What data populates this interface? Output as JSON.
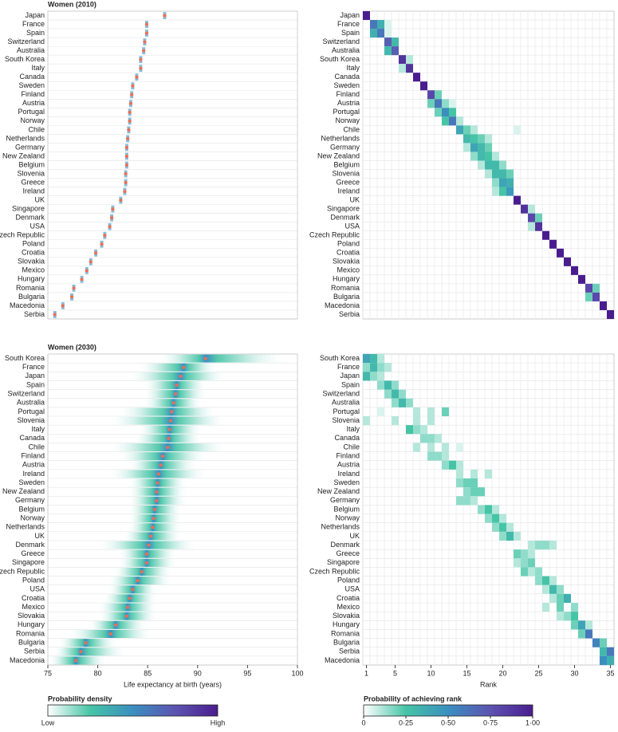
{
  "chart_data": [
    {
      "type": "dot",
      "title": "Women (2010)",
      "categories": [
        "Japan",
        "France",
        "Spain",
        "Switzerland",
        "Australia",
        "South Korea",
        "Italy",
        "Canada",
        "Sweden",
        "Finland",
        "Austria",
        "Portugal",
        "Norway",
        "Chile",
        "Netherlands",
        "Germany",
        "New Zealand",
        "Belgium",
        "Slovenia",
        "Greece",
        "Ireland",
        "UK",
        "Singapore",
        "Denmark",
        "USA",
        "Czech Republic",
        "Poland",
        "Croatia",
        "Slovakia",
        "Mexico",
        "Hungary",
        "Romania",
        "Bulgaria",
        "Macedonia",
        "Serbia"
      ],
      "values": [
        86.7,
        84.9,
        84.9,
        84.7,
        84.6,
        84.3,
        84.3,
        83.9,
        83.5,
        83.4,
        83.3,
        83.2,
        83.2,
        83.1,
        83.0,
        82.9,
        82.9,
        82.9,
        82.8,
        82.8,
        82.7,
        82.3,
        81.5,
        81.4,
        81.2,
        80.7,
        80.4,
        79.8,
        79.3,
        78.9,
        78.4,
        77.6,
        77.4,
        76.5,
        75.7
      ],
      "xlim": [
        75,
        100
      ],
      "color": "#f26b4f"
    },
    {
      "type": "heatmap",
      "categories": [
        "Japan",
        "France",
        "Spain",
        "Switzerland",
        "Australia",
        "South Korea",
        "Italy",
        "Canada",
        "Sweden",
        "Finland",
        "Austria",
        "Portugal",
        "Norway",
        "Chile",
        "Netherlands",
        "Germany",
        "New Zealand",
        "Belgium",
        "Slovenia",
        "Greece",
        "Ireland",
        "UK",
        "Singapore",
        "Denmark",
        "USA",
        "Czech Republic",
        "Poland",
        "Croatia",
        "Slovakia",
        "Mexico",
        "Hungary",
        "Romania",
        "Bulgaria",
        "Macedonia",
        "Serbia"
      ],
      "cells": [
        [
          0,
          1,
          1
        ],
        [
          1,
          2,
          0.6
        ],
        [
          1,
          3,
          0.35
        ],
        [
          1,
          4,
          0.05
        ],
        [
          2,
          3,
          0.6
        ],
        [
          2,
          2,
          0.35
        ],
        [
          2,
          4,
          0.05
        ],
        [
          3,
          4,
          0.7
        ],
        [
          3,
          5,
          0.3
        ],
        [
          4,
          5,
          0.7
        ],
        [
          4,
          4,
          0.3
        ],
        [
          5,
          6,
          0.9
        ],
        [
          5,
          7,
          0.1
        ],
        [
          6,
          7,
          0.9
        ],
        [
          6,
          6,
          0.1
        ],
        [
          7,
          8,
          1
        ],
        [
          8,
          9,
          1
        ],
        [
          9,
          10,
          0.8
        ],
        [
          9,
          11,
          0.2
        ],
        [
          10,
          11,
          0.6
        ],
        [
          10,
          10,
          0.2
        ],
        [
          10,
          12,
          0.15
        ],
        [
          10,
          13,
          0.05
        ],
        [
          11,
          12,
          0.5
        ],
        [
          11,
          13,
          0.25
        ],
        [
          11,
          11,
          0.2
        ],
        [
          12,
          13,
          0.6
        ],
        [
          12,
          12,
          0.25
        ],
        [
          12,
          14,
          0.1
        ],
        [
          13,
          14,
          0.4
        ],
        [
          13,
          15,
          0.2
        ],
        [
          13,
          16,
          0.1
        ],
        [
          13,
          22,
          0.05
        ],
        [
          14,
          15,
          0.3
        ],
        [
          14,
          16,
          0.25
        ],
        [
          14,
          17,
          0.2
        ],
        [
          14,
          18,
          0.1
        ],
        [
          15,
          16,
          0.4
        ],
        [
          15,
          17,
          0.3
        ],
        [
          15,
          18,
          0.2
        ],
        [
          15,
          15,
          0.1
        ],
        [
          16,
          17,
          0.3
        ],
        [
          16,
          18,
          0.25
        ],
        [
          16,
          16,
          0.15
        ],
        [
          16,
          19,
          0.1
        ],
        [
          17,
          18,
          0.3
        ],
        [
          17,
          19,
          0.3
        ],
        [
          17,
          20,
          0.15
        ],
        [
          17,
          17,
          0.1
        ],
        [
          18,
          19,
          0.3
        ],
        [
          18,
          20,
          0.3
        ],
        [
          18,
          21,
          0.2
        ],
        [
          18,
          18,
          0.1
        ],
        [
          19,
          20,
          0.4
        ],
        [
          19,
          21,
          0.35
        ],
        [
          19,
          19,
          0.15
        ],
        [
          20,
          21,
          0.45
        ],
        [
          20,
          20,
          0.25
        ],
        [
          20,
          19,
          0.1
        ],
        [
          21,
          22,
          1
        ],
        [
          22,
          23,
          0.9
        ],
        [
          22,
          24,
          0.1
        ],
        [
          23,
          24,
          0.8
        ],
        [
          23,
          25,
          0.2
        ],
        [
          24,
          25,
          0.9
        ],
        [
          24,
          24,
          0.1
        ],
        [
          25,
          26,
          1
        ],
        [
          26,
          27,
          1
        ],
        [
          27,
          28,
          1
        ],
        [
          28,
          29,
          1
        ],
        [
          29,
          30,
          1
        ],
        [
          30,
          31,
          1
        ],
        [
          31,
          32,
          0.8
        ],
        [
          31,
          33,
          0.2
        ],
        [
          32,
          33,
          0.8
        ],
        [
          32,
          32,
          0.2
        ],
        [
          33,
          34,
          1
        ],
        [
          34,
          35,
          1
        ]
      ],
      "xlim": [
        0.5,
        35.5
      ]
    },
    {
      "type": "density",
      "title": "Women (2030)",
      "categories": [
        "South Korea",
        "France",
        "Japan",
        "Spain",
        "Switzerland",
        "Australia",
        "Portugal",
        "Slovenia",
        "Italy",
        "Canada",
        "Chile",
        "Finland",
        "Austria",
        "Ireland",
        "Sweden",
        "New Zealand",
        "Germany",
        "Belgium",
        "Norway",
        "Netherlands",
        "UK",
        "Denmark",
        "Greece",
        "Singapore",
        "Czech Republic",
        "Poland",
        "USA",
        "Croatia",
        "Mexico",
        "Slovakia",
        "Hungary",
        "Romania",
        "Bulgaria",
        "Serbia",
        "Macedonia"
      ],
      "values": [
        90.8,
        88.6,
        88.3,
        87.9,
        87.8,
        87.6,
        87.4,
        87.3,
        87.2,
        87.1,
        87.0,
        86.5,
        86.3,
        86.1,
        86.0,
        85.9,
        85.9,
        85.7,
        85.6,
        85.5,
        85.3,
        85.1,
        84.9,
        84.9,
        84.4,
        84.0,
        83.5,
        83.2,
        83.0,
        82.9,
        81.8,
        81.3,
        78.8,
        78.3,
        77.8
      ],
      "lower": [
        86,
        84,
        83,
        84.5,
        84.5,
        84.5,
        82,
        81,
        84,
        83.5,
        81,
        82,
        83,
        81,
        83,
        83,
        83,
        83,
        83,
        83,
        82.5,
        80,
        82,
        82,
        81.5,
        81,
        81,
        80.5,
        80,
        80,
        79,
        77,
        76,
        75.5,
        75
      ],
      "upper": [
        99,
        92,
        93,
        91,
        91,
        90.5,
        92,
        93,
        90.5,
        90.5,
        93,
        91,
        90,
        91,
        89,
        89,
        89,
        88.5,
        88.5,
        88.5,
        88.5,
        90,
        88,
        88,
        87.5,
        87.5,
        86,
        86,
        86,
        86,
        85,
        85.5,
        82,
        83,
        81
      ],
      "xlim": [
        75,
        100
      ],
      "xticks": [
        75,
        80,
        85,
        90,
        95,
        100
      ],
      "xlabel": "Life expectancy at birth (years)",
      "color": "#f26b4f"
    },
    {
      "type": "heatmap",
      "categories": [
        "South Korea",
        "France",
        "Japan",
        "Spain",
        "Switzerland",
        "Australia",
        "Portugal",
        "Slovenia",
        "Italy",
        "Canada",
        "Chile",
        "Finland",
        "Austria",
        "Ireland",
        "Sweden",
        "New Zealand",
        "Germany",
        "Belgium",
        "Norway",
        "Netherlands",
        "UK",
        "Denmark",
        "Greece",
        "Singapore",
        "Czech Republic",
        "Poland",
        "USA",
        "Croatia",
        "Mexico",
        "Slovakia",
        "Hungary",
        "Romania",
        "Bulgaria",
        "Serbia",
        "Macedonia"
      ],
      "cells": [
        [
          0,
          1,
          0.4
        ],
        [
          0,
          2,
          0.3
        ],
        [
          0,
          3,
          0.1
        ],
        [
          1,
          2,
          0.3
        ],
        [
          1,
          1,
          0.15
        ],
        [
          1,
          3,
          0.15
        ],
        [
          1,
          4,
          0.1
        ],
        [
          2,
          1,
          0.3
        ],
        [
          2,
          2,
          0.15
        ],
        [
          2,
          3,
          0.1
        ],
        [
          3,
          4,
          0.3
        ],
        [
          3,
          3,
          0.15
        ],
        [
          3,
          5,
          0.15
        ],
        [
          4,
          5,
          0.3
        ],
        [
          4,
          4,
          0.15
        ],
        [
          4,
          6,
          0.15
        ],
        [
          5,
          6,
          0.3
        ],
        [
          5,
          5,
          0.15
        ],
        [
          5,
          7,
          0.15
        ],
        [
          6,
          12,
          0.2
        ],
        [
          6,
          8,
          0.1
        ],
        [
          6,
          10,
          0.1
        ],
        [
          6,
          3,
          0.05
        ],
        [
          7,
          1,
          0.1
        ],
        [
          7,
          5,
          0.1
        ],
        [
          7,
          8,
          0.1
        ],
        [
          7,
          10,
          0.1
        ],
        [
          8,
          7,
          0.25
        ],
        [
          8,
          8,
          0.15
        ],
        [
          8,
          9,
          0.1
        ],
        [
          9,
          9,
          0.15
        ],
        [
          9,
          10,
          0.15
        ],
        [
          9,
          11,
          0.1
        ],
        [
          10,
          8,
          0.1
        ],
        [
          10,
          10,
          0.1
        ],
        [
          10,
          12,
          0.1
        ],
        [
          10,
          14,
          0.05
        ],
        [
          11,
          10,
          0.15
        ],
        [
          11,
          11,
          0.15
        ],
        [
          11,
          12,
          0.1
        ],
        [
          12,
          13,
          0.25
        ],
        [
          12,
          12,
          0.15
        ],
        [
          12,
          14,
          0.1
        ],
        [
          13,
          14,
          0.1
        ],
        [
          13,
          16,
          0.1
        ],
        [
          13,
          18,
          0.1
        ],
        [
          14,
          15,
          0.2
        ],
        [
          14,
          16,
          0.2
        ],
        [
          14,
          14,
          0.15
        ],
        [
          15,
          16,
          0.2
        ],
        [
          15,
          17,
          0.2
        ],
        [
          15,
          15,
          0.15
        ],
        [
          16,
          15,
          0.15
        ],
        [
          16,
          14,
          0.15
        ],
        [
          16,
          16,
          0.1
        ],
        [
          17,
          18,
          0.25
        ],
        [
          17,
          17,
          0.15
        ],
        [
          17,
          19,
          0.1
        ],
        [
          18,
          19,
          0.25
        ],
        [
          18,
          18,
          0.15
        ],
        [
          18,
          20,
          0.1
        ],
        [
          19,
          20,
          0.25
        ],
        [
          19,
          19,
          0.15
        ],
        [
          19,
          21,
          0.1
        ],
        [
          20,
          21,
          0.3
        ],
        [
          20,
          20,
          0.15
        ],
        [
          20,
          22,
          0.1
        ],
        [
          21,
          25,
          0.15
        ],
        [
          21,
          26,
          0.15
        ],
        [
          21,
          24,
          0.1
        ],
        [
          21,
          27,
          0.1
        ],
        [
          22,
          22,
          0.2
        ],
        [
          22,
          23,
          0.15
        ],
        [
          22,
          24,
          0.1
        ],
        [
          23,
          24,
          0.2
        ],
        [
          23,
          23,
          0.15
        ],
        [
          23,
          22,
          0.1
        ],
        [
          24,
          23,
          0.2
        ],
        [
          24,
          25,
          0.15
        ],
        [
          24,
          24,
          0.1
        ],
        [
          25,
          26,
          0.25
        ],
        [
          25,
          25,
          0.15
        ],
        [
          25,
          27,
          0.1
        ],
        [
          26,
          27,
          0.3
        ],
        [
          26,
          28,
          0.15
        ],
        [
          26,
          26,
          0.1
        ],
        [
          27,
          29,
          0.35
        ],
        [
          27,
          28,
          0.2
        ],
        [
          27,
          27,
          0.1
        ],
        [
          28,
          28,
          0.2
        ],
        [
          28,
          30,
          0.15
        ],
        [
          28,
          26,
          0.1
        ],
        [
          29,
          30,
          0.25
        ],
        [
          29,
          29,
          0.15
        ],
        [
          29,
          28,
          0.1
        ],
        [
          30,
          31,
          0.4
        ],
        [
          30,
          30,
          0.2
        ],
        [
          30,
          32,
          0.1
        ],
        [
          31,
          32,
          0.6
        ],
        [
          31,
          31,
          0.2
        ],
        [
          32,
          33,
          0.55
        ],
        [
          32,
          34,
          0.2
        ],
        [
          33,
          35,
          0.6
        ],
        [
          33,
          34,
          0.3
        ],
        [
          34,
          34,
          0.5
        ],
        [
          34,
          35,
          0.35
        ]
      ],
      "xlim": [
        0.5,
        35.5
      ],
      "xticks": [
        1,
        5,
        10,
        15,
        20,
        25,
        30,
        35
      ],
      "xlabel": "Rank"
    },
    {
      "type": "colorbar",
      "title": "Probability density",
      "labels": [
        "Low",
        "High"
      ],
      "colors": [
        "#ffffff",
        "#46c4a6",
        "#3a8fc0",
        "#5d53b0",
        "#4a1d8f"
      ]
    },
    {
      "type": "colorbar",
      "title": "Probability of achieving rank",
      "colors": [
        "#ffffff",
        "#46c4a6",
        "#3a8fc0",
        "#5d53b0",
        "#4a1d8f"
      ],
      "xlim": [
        0,
        1
      ],
      "xticks": [
        0,
        {
          "value": 0.25,
          "label": "0·25"
        },
        {
          "value": 0.5,
          "label": "0·50"
        },
        {
          "value": 0.75,
          "label": "0·75"
        },
        {
          "value": 1,
          "label": "1·00"
        }
      ]
    }
  ]
}
